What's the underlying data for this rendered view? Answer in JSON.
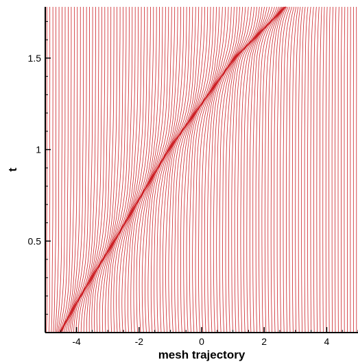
{
  "chart_data": {
    "type": "line",
    "title": "",
    "xlabel": "mesh trajectory",
    "ylabel": "t",
    "xlim": [
      -5,
      5
    ],
    "ylim": [
      0,
      1.78
    ],
    "xticks": [
      -4,
      -2,
      0,
      2,
      4
    ],
    "xtick_labels": [
      "-4",
      "-2",
      "0",
      "2",
      "4"
    ],
    "yticks": [
      0.5,
      1,
      1.5
    ],
    "ytick_labels": [
      "0.5",
      "1",
      "1.5"
    ],
    "grid": false,
    "legend": "none",
    "line_color": "#cc1f24",
    "description_of_series": "mesh node trajectories x_j(t), one per node",
    "mesh": {
      "node_count": 120,
      "domain": [
        -5,
        5
      ],
      "front_path": [
        [
          0,
          -4.0
        ],
        [
          0.5,
          -2.4
        ],
        [
          1.0,
          -0.9
        ],
        [
          1.25,
          0.0
        ],
        [
          1.5,
          0.9
        ],
        [
          1.78,
          2.3
        ]
      ],
      "front_width_x": 0.5,
      "clustering_strength": 0.62
    }
  }
}
